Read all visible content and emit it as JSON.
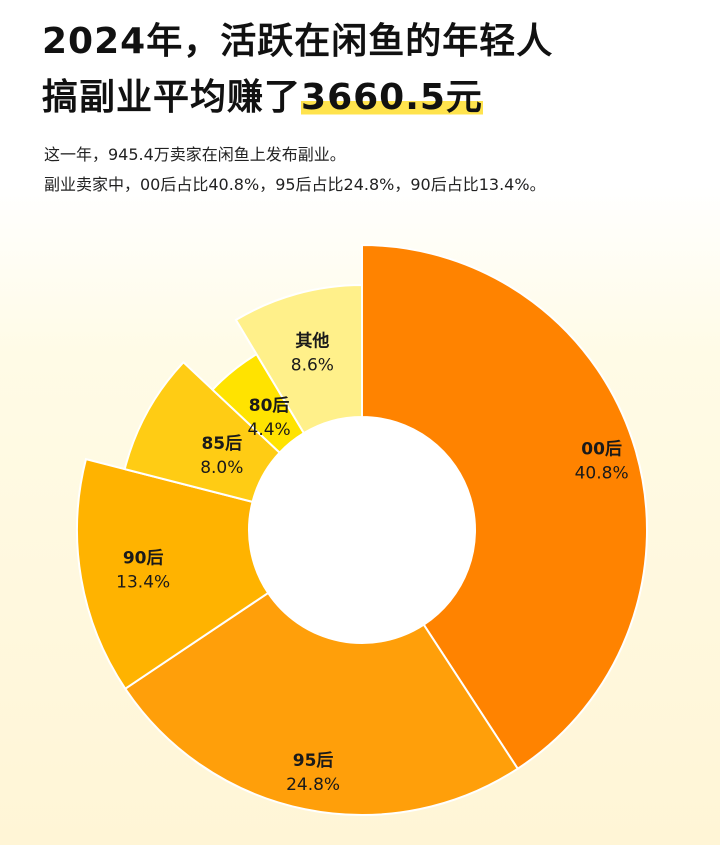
{
  "title": {
    "line1": "2024年，活跃在闲鱼的年轻人",
    "line2_prefix": "搞副业平均赚了",
    "line2_highlight": "3660.5元"
  },
  "subtitle": {
    "line1": "这一年，945.4万卖家在闲鱼上发布副业。",
    "line2": "副业卖家中，00后占比40.8%，95后占比24.8%，90后占比13.4%。"
  },
  "chart_data": {
    "type": "pie",
    "variant": "rose-donut",
    "categories": [
      "00后",
      "95后",
      "90后",
      "85后",
      "80后",
      "其他"
    ],
    "values": [
      40.8,
      24.8,
      13.4,
      8.0,
      4.4,
      8.6
    ],
    "labels": [
      "40.8%",
      "24.8%",
      "13.4%",
      "8.0%",
      "4.4%",
      "8.6%"
    ],
    "colors": [
      "#ff8300",
      "#ff9f0a",
      "#ffb300",
      "#ffcc14",
      "#ffe300",
      "#fff08a"
    ],
    "start_angle_deg": 0,
    "direction": "clockwise"
  }
}
